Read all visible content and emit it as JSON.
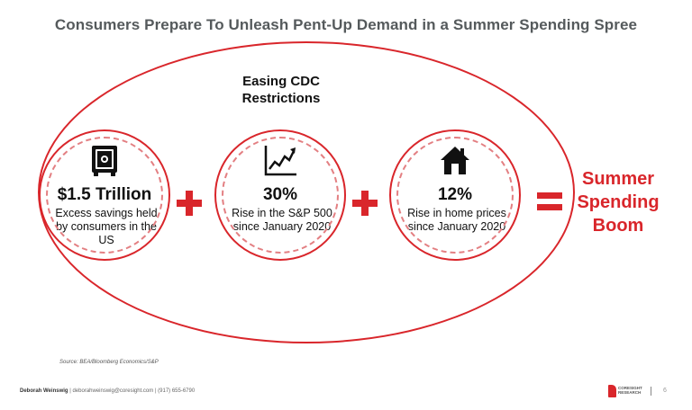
{
  "slide": {
    "title": "Consumers Prepare To Unleash Pent-Up Demand in a Summer Spending Spree",
    "oval_label_line1": "Easing CDC",
    "oval_label_line2": "Restrictions",
    "items": [
      {
        "icon": "safe-icon",
        "value": "$1.5 Trillion",
        "description": "Excess savings held by consumers in the US"
      },
      {
        "icon": "stock-chart-icon",
        "value": "30%",
        "description": "Rise in the S&P 500 since January 2020"
      },
      {
        "icon": "house-icon",
        "value": "12%",
        "description": "Rise in home prices since January 2020"
      }
    ],
    "result_line1": "Summer",
    "result_line2": "Spending",
    "result_line3": "Boom",
    "source": "Source: BEA/Bloomberg Economics/S&P"
  },
  "footer": {
    "author": "Deborah Weinswig",
    "contact": " | deborahweinswig@coresight.com | (917) 655-6790",
    "logo_line1": "CORESIGHT",
    "logo_line2": "RESEARCH",
    "page_number": "6"
  },
  "colors": {
    "accent": "#d9262b",
    "title": "#555a5c"
  }
}
